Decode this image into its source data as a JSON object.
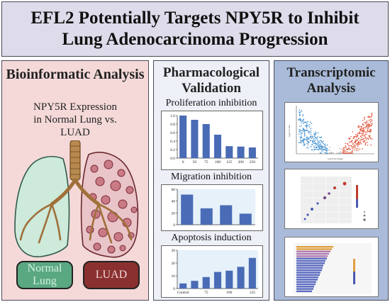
{
  "title": {
    "line1": "EFL2 Potentially Targets NPY5R to Inhibit",
    "line2": "Lung Adenocarcinoma Progression"
  },
  "bioinformatic": {
    "heading": "Bioinformatic Analysis",
    "caption_line1": "NPY5R Expression",
    "caption_line2": "in Normal Lung vs.",
    "caption_line3": "LUAD",
    "normal_label_line1": "Normal",
    "normal_label_line2": "Lung",
    "luad_label": "LUAD",
    "colors": {
      "normal": "#5aa882",
      "luad": "#8a3030",
      "airway": "#a0703a"
    }
  },
  "pharmacological": {
    "heading_line1": "Pharmacological",
    "heading_line2": "Validation",
    "proliferation_label": "Proliferation inhibition",
    "migration_label": "Migration inhibition",
    "apoptosis_label": "Apoptosis induction"
  },
  "transcriptomic": {
    "heading_line1": "Transcriptomic",
    "heading_line2": "Analysis",
    "volcano_xlabel": "log2 Fold Change",
    "volcano_ylabel": "-log10 P value"
  },
  "chart_data": [
    {
      "type": "bar",
      "title": "Proliferation inhibition",
      "categories": [
        "0",
        "50",
        "75",
        "100",
        "125",
        "200",
        "250"
      ],
      "values": [
        1.0,
        0.9,
        0.8,
        0.55,
        0.28,
        0.27,
        0.25
      ],
      "ylim": [
        0,
        1.0
      ],
      "yticks": [
        "0.0",
        "0.2",
        "0.4",
        "0.6",
        "0.8",
        "1.0"
      ],
      "color": "#4a6bb5"
    },
    {
      "type": "bar",
      "title": "Migration inhibition",
      "categories": [
        "",
        "",
        "",
        ""
      ],
      "values": [
        68,
        37,
        44,
        25
      ],
      "ylim": [
        0,
        80
      ],
      "yticks": [
        "0",
        "20",
        "40",
        "60"
      ],
      "color": "#4a6bb5"
    },
    {
      "type": "bar",
      "title": "Apoptosis induction",
      "categories": [
        "Control",
        "",
        "75",
        "",
        "100",
        "",
        "125"
      ],
      "values": [
        4,
        6,
        9,
        13,
        14,
        17,
        24
      ],
      "ylim": [
        0,
        30
      ],
      "yticks": [
        "0",
        "10",
        "20",
        "30"
      ],
      "color": "#4a6bb5"
    }
  ]
}
